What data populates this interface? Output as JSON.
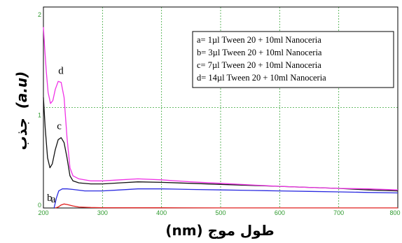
{
  "chart_data": {
    "type": "line",
    "xlabel": "طول موج (nm)",
    "ylabel_text": "جذب",
    "ylabel_unit": "(a.u)",
    "xlim": [
      200,
      800
    ],
    "ylim": [
      0,
      2
    ],
    "xticks": [
      "200",
      "300",
      "400",
      "500",
      "600",
      "700",
      "800"
    ],
    "yticks": [
      "0",
      "1",
      "2"
    ],
    "grid": true,
    "legend_position": "top-right",
    "legend": [
      "a= 1µl Tween 20 + 10ml Nanoceria",
      "b= 3µl Tween 20 + 10ml Nanoceria",
      "c= 7µl Tween 20 + 10ml Nanoceria",
      "d= 14µl Tween 20 + 10ml Nanoceria"
    ],
    "series": [
      {
        "label": "a",
        "color": "#e0201e",
        "x": [
          220,
          225,
          230,
          235,
          240,
          250,
          260,
          280,
          300,
          350,
          400,
          500,
          600,
          700,
          800
        ],
        "y": [
          0.0,
          0.01,
          0.03,
          0.04,
          0.035,
          0.02,
          0.01,
          0.005,
          0.003,
          0.002,
          0.002,
          0.001,
          0.001,
          0.001,
          0.001
        ]
      },
      {
        "label": "b",
        "color": "#2a2ae0",
        "x": [
          218,
          222,
          226,
          232,
          240,
          250,
          270,
          300,
          330,
          360,
          400,
          450,
          500,
          550,
          600,
          650,
          700,
          750,
          800
        ],
        "y": [
          0.0,
          0.1,
          0.17,
          0.19,
          0.19,
          0.185,
          0.17,
          0.17,
          0.18,
          0.19,
          0.19,
          0.185,
          0.18,
          0.175,
          0.17,
          0.165,
          0.16,
          0.155,
          0.15
        ]
      },
      {
        "label": "c",
        "color": "#111111",
        "x": [
          200,
          203,
          207,
          211,
          215,
          220,
          225,
          230,
          235,
          240,
          245,
          250,
          260,
          280,
          300,
          330,
          360,
          400,
          450,
          500,
          550,
          600,
          650,
          700,
          750,
          800
        ],
        "y": [
          1.1,
          0.8,
          0.5,
          0.4,
          0.44,
          0.58,
          0.68,
          0.7,
          0.65,
          0.5,
          0.32,
          0.27,
          0.25,
          0.24,
          0.24,
          0.25,
          0.26,
          0.255,
          0.245,
          0.235,
          0.225,
          0.215,
          0.205,
          0.195,
          0.18,
          0.17
        ]
      },
      {
        "label": "d",
        "color": "#f032e6",
        "x": [
          200,
          202,
          205,
          208,
          212,
          216,
          220,
          225,
          230,
          235,
          240,
          245,
          250,
          260,
          280,
          300,
          330,
          360,
          400,
          450,
          500,
          550,
          600,
          650,
          700,
          750,
          800
        ],
        "y": [
          1.8,
          1.6,
          1.35,
          1.15,
          1.04,
          1.07,
          1.18,
          1.26,
          1.25,
          1.1,
          0.7,
          0.4,
          0.32,
          0.29,
          0.27,
          0.27,
          0.28,
          0.29,
          0.28,
          0.26,
          0.245,
          0.23,
          0.215,
          0.205,
          0.195,
          0.19,
          0.18
        ]
      }
    ]
  }
}
